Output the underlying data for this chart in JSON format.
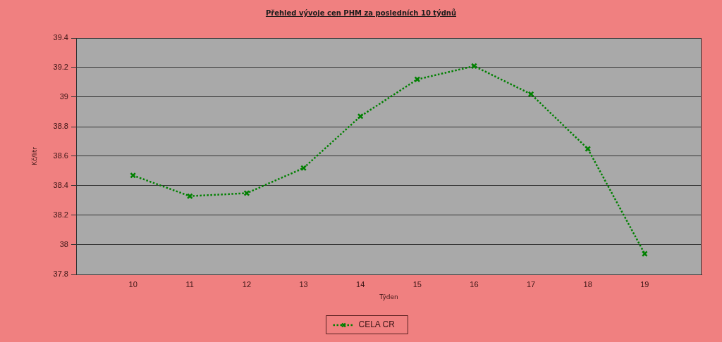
{
  "chart_data": {
    "type": "line",
    "title": "Přehled vývoje cen PHM za posledních 10 týdnů",
    "xlabel": "Týden",
    "ylabel": "Kč/litr",
    "x": [
      10,
      11,
      12,
      13,
      14,
      15,
      16,
      17,
      18,
      19
    ],
    "xlim": [
      9,
      20
    ],
    "xticks": [
      10,
      11,
      12,
      13,
      14,
      15,
      16,
      17,
      18,
      19
    ],
    "ylim": [
      37.8,
      39.4
    ],
    "yticks": [
      37.8,
      38,
      38.2,
      38.4,
      38.6,
      38.8,
      39,
      39.2,
      39.4
    ],
    "series": [
      {
        "name": "CELA CR",
        "color": "#008000",
        "values": [
          38.47,
          38.33,
          38.35,
          38.52,
          38.87,
          39.12,
          39.21,
          39.02,
          38.65,
          37.94
        ]
      }
    ],
    "grid": "y",
    "legend": "bottom",
    "marker": "cross",
    "line_style": "dotted"
  }
}
